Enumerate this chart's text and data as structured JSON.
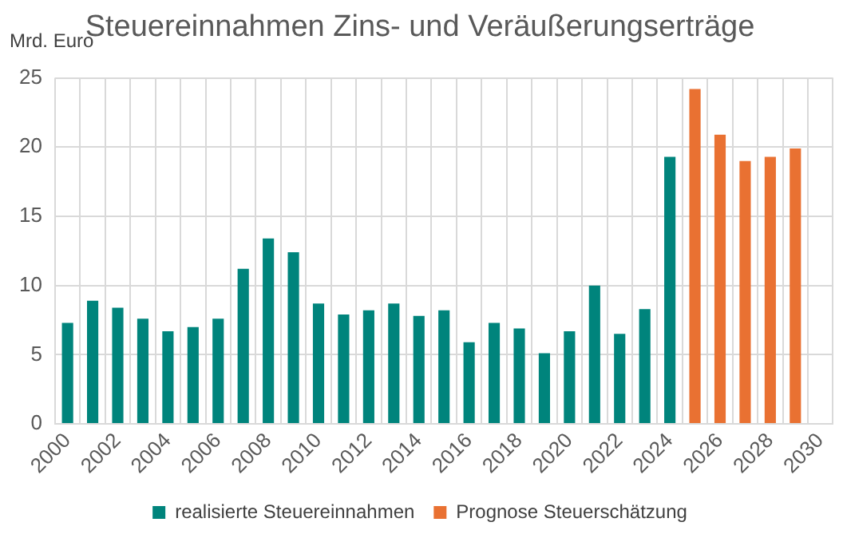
{
  "chart_data": {
    "type": "bar",
    "title": "Steuereinnahmen Zins- und Veräußerungserträge",
    "ylabel": "Mrd. Euro",
    "categories": [
      "2000",
      null,
      "2002",
      null,
      "2004",
      null,
      "2006",
      null,
      "2008",
      null,
      "2010",
      null,
      "2012",
      null,
      "2014",
      null,
      "2016",
      null,
      "2018",
      null,
      "2020",
      null,
      "2022",
      null,
      "2024",
      null,
      "2026",
      null,
      "2028",
      null,
      "2030"
    ],
    "series": [
      {
        "name": "realisierte Steuereinnahmen",
        "color": "#00847c",
        "values": [
          7.3,
          8.9,
          8.4,
          7.6,
          6.7,
          7.0,
          7.6,
          11.2,
          13.4,
          12.4,
          8.7,
          7.9,
          8.2,
          8.7,
          7.8,
          8.2,
          5.9,
          7.3,
          6.9,
          5.1,
          6.7,
          10.0,
          6.5,
          8.3,
          19.3,
          null,
          null,
          null,
          null,
          null,
          null
        ]
      },
      {
        "name": "Prognose Steuerschätzung",
        "color": "#e97132",
        "values": [
          null,
          null,
          null,
          null,
          null,
          null,
          null,
          null,
          null,
          null,
          null,
          null,
          null,
          null,
          null,
          null,
          null,
          null,
          null,
          null,
          null,
          null,
          null,
          null,
          null,
          24.2,
          20.9,
          19.0,
          19.3,
          19.9,
          null
        ]
      }
    ],
    "ylim": [
      0,
      25
    ],
    "yticks": [
      0,
      5,
      10,
      15,
      20,
      25
    ],
    "grid": true,
    "legend": "bottom"
  }
}
